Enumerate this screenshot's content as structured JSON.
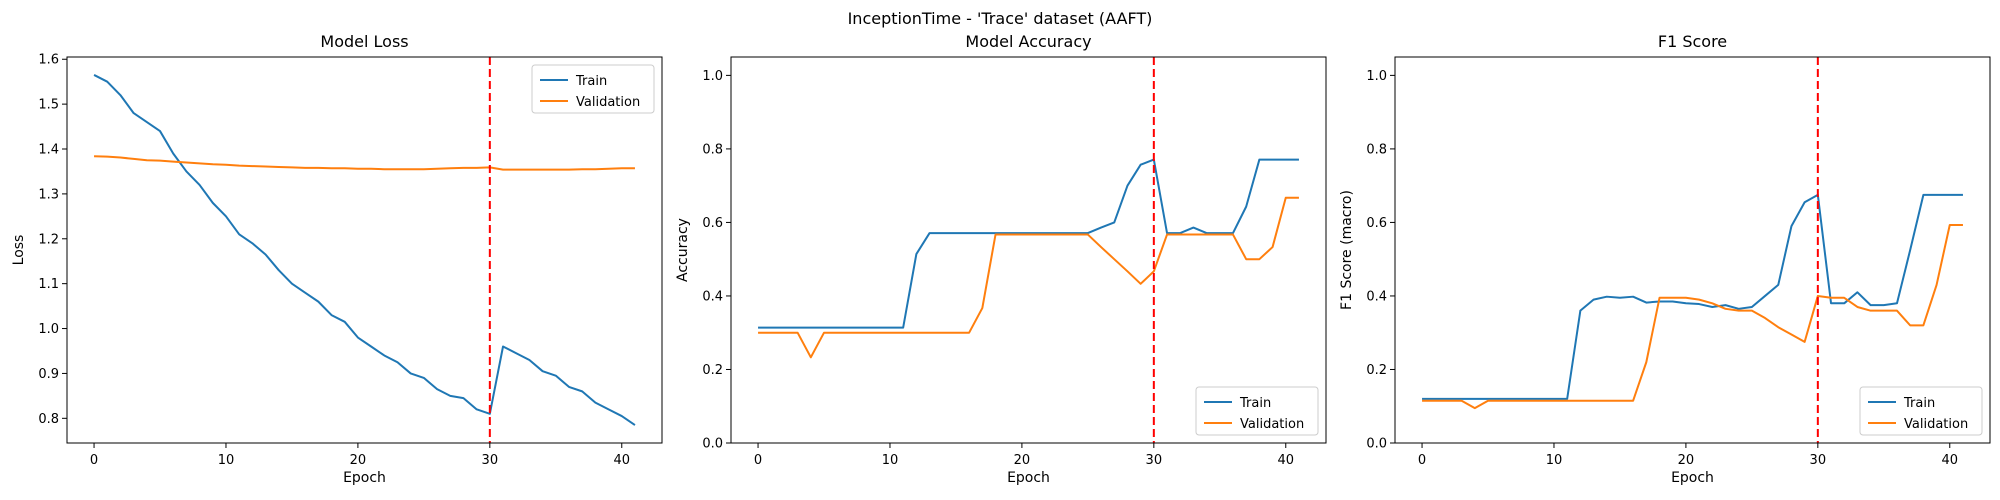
{
  "figure": {
    "suptitle": "InceptionTime - 'Trace' dataset (AAFT)"
  },
  "chart_data": [
    {
      "type": "line",
      "title": "Model Loss",
      "xlabel": "Epoch",
      "ylabel": "Loss",
      "xlim": [
        -2.05,
        43.05
      ],
      "ylim": [
        0.745,
        1.605
      ],
      "xticks": [
        0,
        10,
        20,
        30,
        40
      ],
      "yticks": [
        0.8,
        0.9,
        1.0,
        1.1,
        1.2,
        1.3,
        1.4,
        1.5,
        1.6
      ],
      "ytick_labels": [
        "0.8",
        "0.9",
        "1.0",
        "1.1",
        "1.2",
        "1.3",
        "1.4",
        "1.5",
        "1.6"
      ],
      "vline": 30,
      "legend": "top-right",
      "colors": {
        "train": "#1f77b4",
        "validation": "#ff7f0e",
        "vline": "#ff0000"
      },
      "x": [
        0,
        1,
        2,
        3,
        4,
        5,
        6,
        7,
        8,
        9,
        10,
        11,
        12,
        13,
        14,
        15,
        16,
        17,
        18,
        19,
        20,
        21,
        22,
        23,
        24,
        25,
        26,
        27,
        28,
        29,
        30,
        31,
        32,
        33,
        34,
        35,
        36,
        37,
        38,
        39,
        40,
        41
      ],
      "series": [
        {
          "name": "Train",
          "values": [
            1.565,
            1.55,
            1.52,
            1.48,
            1.46,
            1.44,
            1.39,
            1.35,
            1.32,
            1.28,
            1.25,
            1.21,
            1.19,
            1.165,
            1.13,
            1.1,
            1.08,
            1.06,
            1.03,
            1.015,
            0.98,
            0.96,
            0.94,
            0.925,
            0.9,
            0.89,
            0.865,
            0.85,
            0.845,
            0.82,
            0.81,
            0.96,
            0.945,
            0.93,
            0.905,
            0.895,
            0.87,
            0.86,
            0.835,
            0.82,
            0.805,
            0.785
          ]
        },
        {
          "name": "Validation",
          "values": [
            1.384,
            1.383,
            1.381,
            1.378,
            1.375,
            1.374,
            1.372,
            1.37,
            1.368,
            1.366,
            1.365,
            1.363,
            1.362,
            1.361,
            1.36,
            1.359,
            1.358,
            1.358,
            1.357,
            1.357,
            1.356,
            1.356,
            1.355,
            1.355,
            1.355,
            1.355,
            1.356,
            1.357,
            1.358,
            1.358,
            1.359,
            1.354,
            1.354,
            1.354,
            1.354,
            1.354,
            1.354,
            1.355,
            1.355,
            1.356,
            1.357,
            1.357
          ]
        }
      ]
    },
    {
      "type": "line",
      "title": "Model Accuracy",
      "xlabel": "Epoch",
      "ylabel": "Accuracy",
      "xlim": [
        -2.05,
        43.05
      ],
      "ylim": [
        0,
        1.05
      ],
      "xticks": [
        0,
        10,
        20,
        30,
        40
      ],
      "yticks": [
        0,
        0.2,
        0.4,
        0.6,
        0.8,
        1.0
      ],
      "ytick_labels": [
        "0.0",
        "0.2",
        "0.4",
        "0.6",
        "0.8",
        "1.0"
      ],
      "vline": 30,
      "legend": "bottom-right",
      "colors": {
        "train": "#1f77b4",
        "validation": "#ff7f0e",
        "vline": "#ff0000"
      },
      "x": [
        0,
        1,
        2,
        3,
        4,
        5,
        6,
        7,
        8,
        9,
        10,
        11,
        12,
        13,
        14,
        15,
        16,
        17,
        18,
        19,
        20,
        21,
        22,
        23,
        24,
        25,
        26,
        27,
        28,
        29,
        30,
        31,
        32,
        33,
        34,
        35,
        36,
        37,
        38,
        39,
        40,
        41
      ],
      "series": [
        {
          "name": "Train",
          "values": [
            0.314,
            0.314,
            0.314,
            0.314,
            0.314,
            0.314,
            0.314,
            0.314,
            0.314,
            0.314,
            0.314,
            0.314,
            0.514,
            0.571,
            0.571,
            0.571,
            0.571,
            0.571,
            0.571,
            0.571,
            0.571,
            0.571,
            0.571,
            0.571,
            0.571,
            0.571,
            0.586,
            0.6,
            0.7,
            0.757,
            0.771,
            0.571,
            0.571,
            0.586,
            0.571,
            0.571,
            0.571,
            0.643,
            0.771,
            0.771,
            0.771,
            0.771
          ]
        },
        {
          "name": "Validation",
          "values": [
            0.3,
            0.3,
            0.3,
            0.3,
            0.233,
            0.3,
            0.3,
            0.3,
            0.3,
            0.3,
            0.3,
            0.3,
            0.3,
            0.3,
            0.3,
            0.3,
            0.3,
            0.367,
            0.567,
            0.567,
            0.567,
            0.567,
            0.567,
            0.567,
            0.567,
            0.567,
            0.533,
            0.5,
            0.467,
            0.433,
            0.467,
            0.567,
            0.567,
            0.567,
            0.567,
            0.567,
            0.567,
            0.5,
            0.5,
            0.533,
            0.667,
            0.667
          ]
        }
      ]
    },
    {
      "type": "line",
      "title": "F1 Score",
      "xlabel": "Epoch",
      "ylabel": "F1 Score (macro)",
      "xlim": [
        -2.05,
        43.05
      ],
      "ylim": [
        0,
        1.05
      ],
      "xticks": [
        0,
        10,
        20,
        30,
        40
      ],
      "yticks": [
        0,
        0.2,
        0.4,
        0.6,
        0.8,
        1.0
      ],
      "ytick_labels": [
        "0.0",
        "0.2",
        "0.4",
        "0.6",
        "0.8",
        "1.0"
      ],
      "vline": 30,
      "legend": "bottom-right",
      "colors": {
        "train": "#1f77b4",
        "validation": "#ff7f0e",
        "vline": "#ff0000"
      },
      "x": [
        0,
        1,
        2,
        3,
        4,
        5,
        6,
        7,
        8,
        9,
        10,
        11,
        12,
        13,
        14,
        15,
        16,
        17,
        18,
        19,
        20,
        21,
        22,
        23,
        24,
        25,
        26,
        27,
        28,
        29,
        30,
        31,
        32,
        33,
        34,
        35,
        36,
        37,
        38,
        39,
        40,
        41
      ],
      "series": [
        {
          "name": "Train",
          "values": [
            0.12,
            0.12,
            0.12,
            0.12,
            0.12,
            0.12,
            0.12,
            0.12,
            0.12,
            0.12,
            0.12,
            0.12,
            0.36,
            0.39,
            0.398,
            0.395,
            0.398,
            0.382,
            0.385,
            0.385,
            0.38,
            0.378,
            0.37,
            0.375,
            0.365,
            0.37,
            0.4,
            0.43,
            0.59,
            0.655,
            0.675,
            0.38,
            0.38,
            0.41,
            0.375,
            0.375,
            0.38,
            0.525,
            0.675,
            0.675,
            0.675,
            0.675
          ]
        },
        {
          "name": "Validation",
          "values": [
            0.115,
            0.115,
            0.115,
            0.115,
            0.095,
            0.115,
            0.115,
            0.115,
            0.115,
            0.115,
            0.115,
            0.115,
            0.115,
            0.115,
            0.115,
            0.115,
            0.115,
            0.22,
            0.395,
            0.395,
            0.395,
            0.39,
            0.38,
            0.365,
            0.36,
            0.36,
            0.34,
            0.315,
            0.295,
            0.275,
            0.4,
            0.395,
            0.395,
            0.37,
            0.36,
            0.36,
            0.36,
            0.32,
            0.32,
            0.43,
            0.593,
            0.593
          ]
        }
      ]
    }
  ]
}
